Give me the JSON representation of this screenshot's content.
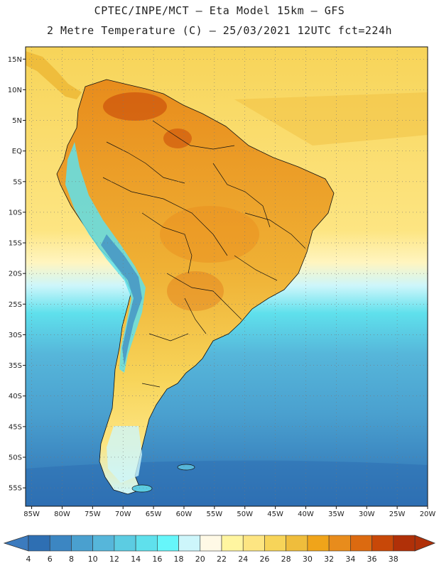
{
  "header": {
    "title_line1": "CPTEC/INPE/MCT –  Eta Model 15km – GFS",
    "title_line2": "2 Metre Temperature (C) – 25/03/2021 12UTC fct=224h"
  },
  "map": {
    "lon_range": [
      -86,
      -20
    ],
    "lat_range": [
      -58,
      17
    ],
    "lat_ticks": [
      {
        "value": 15,
        "label": "15N"
      },
      {
        "value": 10,
        "label": "10N"
      },
      {
        "value": 5,
        "label": "5N"
      },
      {
        "value": 0,
        "label": "EQ"
      },
      {
        "value": -5,
        "label": "5S"
      },
      {
        "value": -10,
        "label": "10S"
      },
      {
        "value": -15,
        "label": "15S"
      },
      {
        "value": -20,
        "label": "20S"
      },
      {
        "value": -25,
        "label": "25S"
      },
      {
        "value": -30,
        "label": "30S"
      },
      {
        "value": -35,
        "label": "35S"
      },
      {
        "value": -40,
        "label": "40S"
      },
      {
        "value": -45,
        "label": "45S"
      },
      {
        "value": -50,
        "label": "50S"
      },
      {
        "value": -55,
        "label": "55S"
      }
    ],
    "lon_ticks": [
      {
        "value": -85,
        "label": "85W"
      },
      {
        "value": -80,
        "label": "80W"
      },
      {
        "value": -75,
        "label": "75W"
      },
      {
        "value": -70,
        "label": "70W"
      },
      {
        "value": -65,
        "label": "65W"
      },
      {
        "value": -60,
        "label": "60W"
      },
      {
        "value": -55,
        "label": "55W"
      },
      {
        "value": -50,
        "label": "50W"
      },
      {
        "value": -45,
        "label": "45W"
      },
      {
        "value": -40,
        "label": "40W"
      },
      {
        "value": -35,
        "label": "35W"
      },
      {
        "value": -30,
        "label": "30W"
      },
      {
        "value": -25,
        "label": "25W"
      },
      {
        "value": -20,
        "label": "20W"
      }
    ]
  },
  "colorbar": {
    "labels": [
      "4",
      "6",
      "8",
      "10",
      "12",
      "14",
      "16",
      "18",
      "20",
      "22",
      "24",
      "26",
      "28",
      "30",
      "32",
      "34",
      "36",
      "38"
    ],
    "colors": [
      "#2e6fb3",
      "#3c86c2",
      "#4aa0cf",
      "#56b6da",
      "#5ccce2",
      "#5fe0ec",
      "#66f6fa",
      "#cdf6fb",
      "#fff9e6",
      "#fff5a0",
      "#fde582",
      "#f7d459",
      "#efbd3c",
      "#f0a41a",
      "#e88c1c",
      "#dc6a10",
      "#c84808",
      "#b03008"
    ],
    "low_color": "#3c7bbe",
    "high_color": "#b03008"
  }
}
